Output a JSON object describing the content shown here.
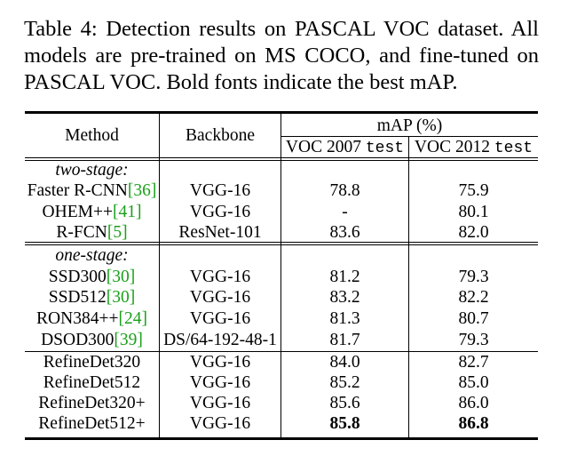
{
  "caption": {
    "line1": "Table 4:  Detection results on PASCAL VOC dataset.  All",
    "line2": "models are pre-trained on MS COCO, and fine-tuned on",
    "line3": "PASCAL VOC. Bold fonts indicate the best mAP."
  },
  "header": {
    "method": "Method",
    "backbone": "Backbone",
    "map": "mAP (%)",
    "voc2007_prefix": "VOC 2007 ",
    "voc2007_suffix": "test",
    "voc2012_prefix": "VOC 2012 ",
    "voc2012_suffix": "test"
  },
  "groups": {
    "two_stage": "two-stage:",
    "one_stage": "one-stage:"
  },
  "rows": [
    {
      "method": "Faster R-CNN",
      "ref": "[36]",
      "backbone": "VGG-16",
      "voc2007": "78.8",
      "voc2012": "75.9"
    },
    {
      "method": "OHEM++",
      "ref": "[41]",
      "backbone": "VGG-16",
      "voc2007": "-",
      "voc2012": "80.1"
    },
    {
      "method": "R-FCN",
      "ref": "[5]",
      "backbone": "ResNet-101",
      "voc2007": "83.6",
      "voc2012": "82.0"
    },
    {
      "method": "SSD300",
      "ref": "[30]",
      "backbone": "VGG-16",
      "voc2007": "81.2",
      "voc2012": "79.3"
    },
    {
      "method": "SSD512",
      "ref": "[30]",
      "backbone": "VGG-16",
      "voc2007": "83.2",
      "voc2012": "82.2"
    },
    {
      "method": "RON384++",
      "ref": "[24]",
      "backbone": "VGG-16",
      "voc2007": "81.3",
      "voc2012": "80.7"
    },
    {
      "method": "DSOD300",
      "ref": "[39]",
      "backbone": "DS/64-192-48-1",
      "voc2007": "81.7",
      "voc2012": "79.3"
    },
    {
      "method": "RefineDet320",
      "ref": "",
      "backbone": "VGG-16",
      "voc2007": "84.0",
      "voc2012": "82.7"
    },
    {
      "method": "RefineDet512",
      "ref": "",
      "backbone": "VGG-16",
      "voc2007": "85.2",
      "voc2012": "85.0"
    },
    {
      "method": "RefineDet320+",
      "ref": "",
      "backbone": "VGG-16",
      "voc2007": "85.6",
      "voc2012": "86.0"
    },
    {
      "method": "RefineDet512+",
      "ref": "",
      "backbone": "VGG-16",
      "voc2007": "85.8",
      "voc2012": "86.8"
    }
  ]
}
